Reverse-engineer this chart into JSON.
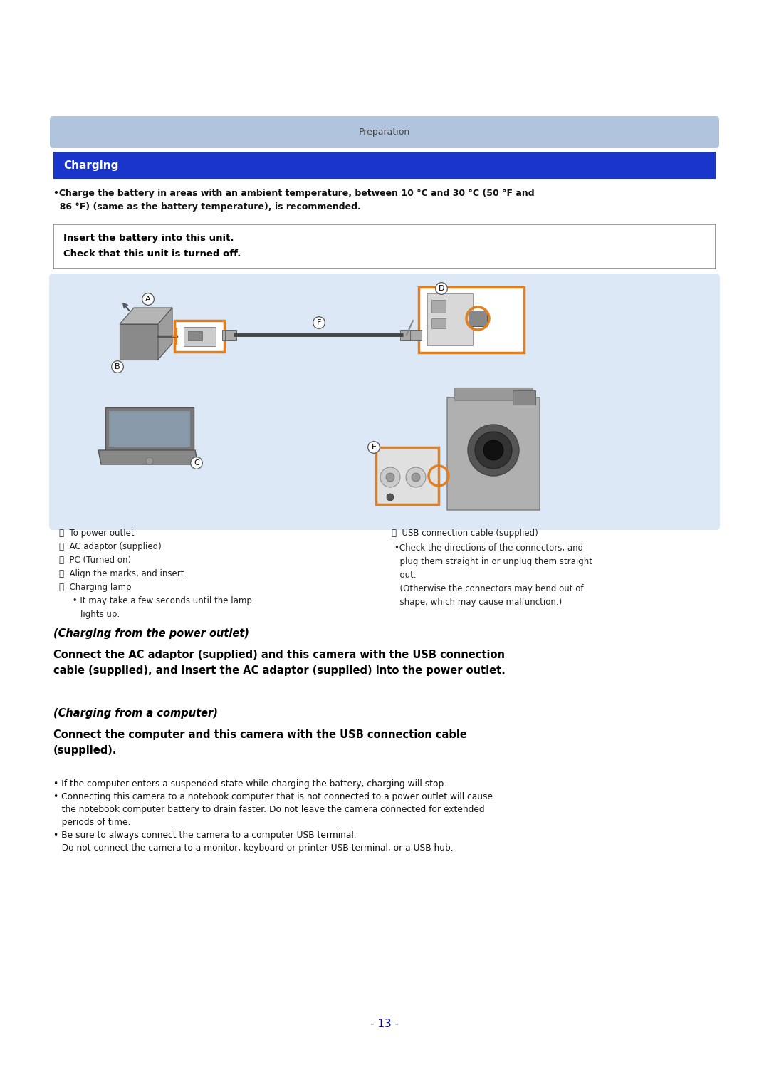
{
  "bg_color": "#ffffff",
  "prep_bar_color": "#b0c4de",
  "prep_bar_text": "Preparation",
  "prep_bar_text_color": "#444444",
  "charging_bar_color": "#1a35cc",
  "charging_bar_text": "Charging",
  "charging_bar_text_color": "#ffffff",
  "bullet1_line1": "•Charge the battery in areas with an ambient temperature, between 10 °C and 30 °C (50 °F and",
  "bullet1_line2": "  86 °F) (same as the battery temperature), is recommended.",
  "box_line1": "Insert the battery into this unit.",
  "box_line2": "Check that this unit is turned off.",
  "diagram_bg": "#dce8f5",
  "orange": "#e08020",
  "cap_left": [
    "Ⓐ  To power outlet",
    "Ⓑ  AC adaptor (supplied)",
    "Ⓒ  PC (Turned on)",
    "Ⓓ  Align the marks, and insert.",
    "Ⓔ  Charging lamp",
    "     • It may take a few seconds until the lamp",
    "        lights up."
  ],
  "cap_right_head": "Ⓕ  USB connection cable (supplied)",
  "cap_right_b1": "•Check the directions of the connectors, and",
  "cap_right_b2": "  plug them straight in or unplug them straight",
  "cap_right_b3": "  out.",
  "cap_right_b4": "  (Otherwise the connectors may bend out of",
  "cap_right_b5": "  shape, which may cause malfunction.)",
  "s1_head": "(Charging from the power outlet)",
  "s1_body1": "Connect the AC adaptor (supplied) and this camera with the USB connection",
  "s1_body2": "cable (supplied), and insert the AC adaptor (supplied) into the power outlet.",
  "s2_head": "(Charging from a computer)",
  "s2_body1": "Connect the computer and this camera with the USB connection cable",
  "s2_body2": "(supplied).",
  "bb1": "• If the computer enters a suspended state while charging the battery, charging will stop.",
  "bb2a": "• Connecting this camera to a notebook computer that is not connected to a power outlet will cause",
  "bb2b": "   the notebook computer battery to drain faster. Do not leave the camera connected for extended",
  "bb2c": "   periods of time.",
  "bb3a": "• Be sure to always connect the camera to a computer USB terminal.",
  "bb3b": "   Do not connect the camera to a monitor, keyboard or printer USB terminal, or a USB hub.",
  "page_num": "- 13 -",
  "page_num_color": "#0000cc"
}
